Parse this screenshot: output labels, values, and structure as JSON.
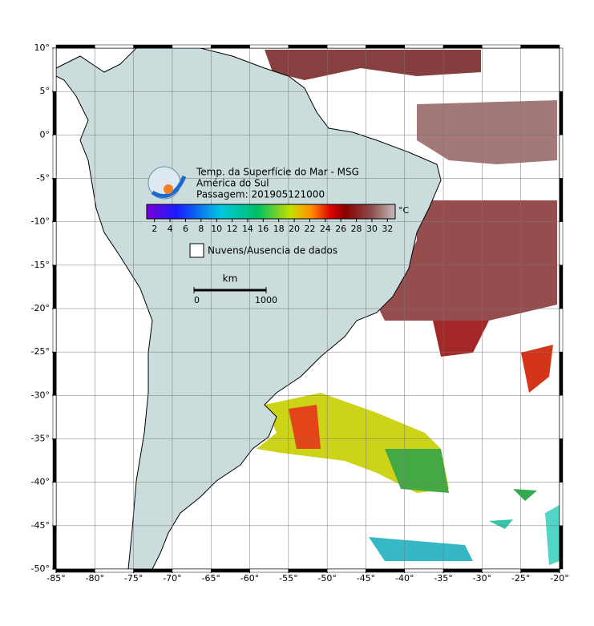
{
  "map": {
    "lon_range": [
      -85,
      -20
    ],
    "lat_range": [
      -50,
      10
    ],
    "lon_ticks": [
      {
        "value": -85,
        "label": "-85°"
      },
      {
        "value": -80,
        "label": "-80°"
      },
      {
        "value": -75,
        "label": "-75°"
      },
      {
        "value": -70,
        "label": "-70°"
      },
      {
        "value": -65,
        "label": "-65°"
      },
      {
        "value": -60,
        "label": "-60°"
      },
      {
        "value": -55,
        "label": "-55°"
      },
      {
        "value": -50,
        "label": "-50°"
      },
      {
        "value": -45,
        "label": "-45°"
      },
      {
        "value": -40,
        "label": "-40°"
      },
      {
        "value": -35,
        "label": "-35°"
      },
      {
        "value": -30,
        "label": "-30°"
      },
      {
        "value": -25,
        "label": "-25°"
      },
      {
        "value": -20,
        "label": "-20°"
      }
    ],
    "lat_ticks": [
      {
        "value": 10,
        "label": "10°"
      },
      {
        "value": 5,
        "label": "5°"
      },
      {
        "value": 0,
        "label": "0°"
      },
      {
        "value": -5,
        "label": "-5°"
      },
      {
        "value": -10,
        "label": "-10°"
      },
      {
        "value": -15,
        "label": "-15°"
      },
      {
        "value": -20,
        "label": "-20°"
      },
      {
        "value": -25,
        "label": "-25°"
      },
      {
        "value": -30,
        "label": "-30°"
      },
      {
        "value": -35,
        "label": "-35°"
      },
      {
        "value": -40,
        "label": "-40°"
      },
      {
        "value": -45,
        "label": "-45°"
      },
      {
        "value": -50,
        "label": "-50°"
      }
    ],
    "grid": true,
    "legend": {
      "title_lines": [
        "Temp. da Superfície do Mar - MSG",
        "América do Sul",
        "Passagem: 201905121000"
      ],
      "colorbar_range": [
        1,
        33
      ],
      "colorbar_ticks": [
        2,
        4,
        6,
        8,
        10,
        12,
        14,
        16,
        18,
        20,
        22,
        24,
        26,
        28,
        30,
        32
      ],
      "colorbar_unit": "°C",
      "clouds_label": "Nuvens/Ausencia de dados"
    },
    "scale_bar": {
      "unit": "km",
      "ticks": [
        0,
        1000
      ]
    }
  }
}
